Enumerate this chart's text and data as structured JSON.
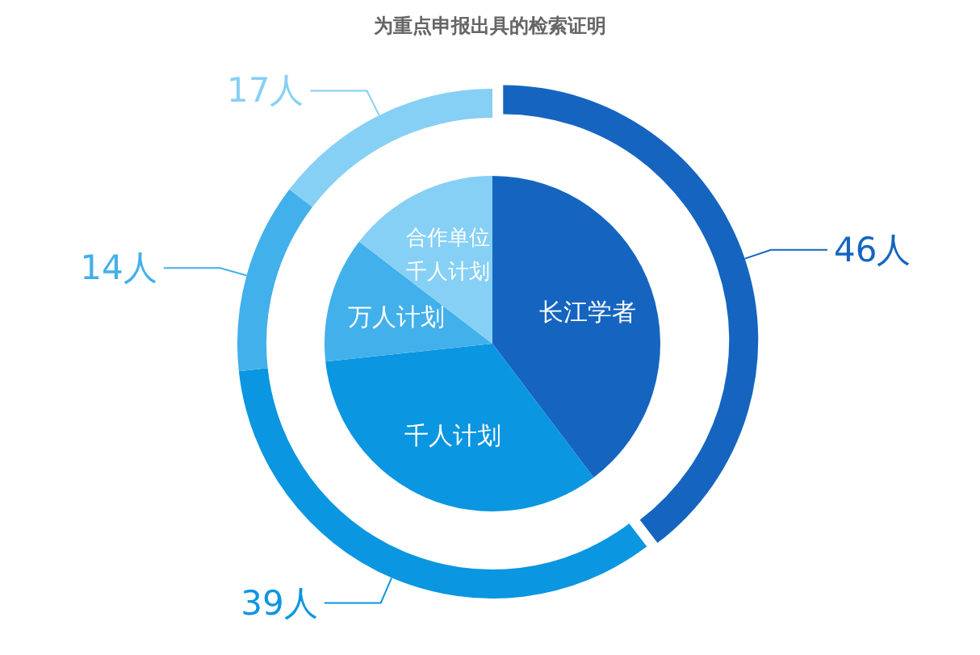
{
  "chart_data": {
    "type": "donut",
    "title": "为重点申报出具的检索证明",
    "categories": [
      "长江学者",
      "千人计划",
      "万人计划",
      "合作单位千人计划"
    ],
    "series": [
      {
        "values": [
          46,
          39,
          14,
          17
        ],
        "value_labels": [
          "46人",
          "39人",
          "14人",
          "17人"
        ],
        "colors": [
          "#1565c0",
          "#0a96e0",
          "#42b0ea",
          "#86d0f5"
        ]
      },
      {
        "values": [
          39.7,
          33.6,
          12.1,
          14.6
        ],
        "colors": [
          "#1565c0",
          "#0a96e0",
          "#42b0ea",
          "#86d0f5"
        ]
      }
    ]
  }
}
